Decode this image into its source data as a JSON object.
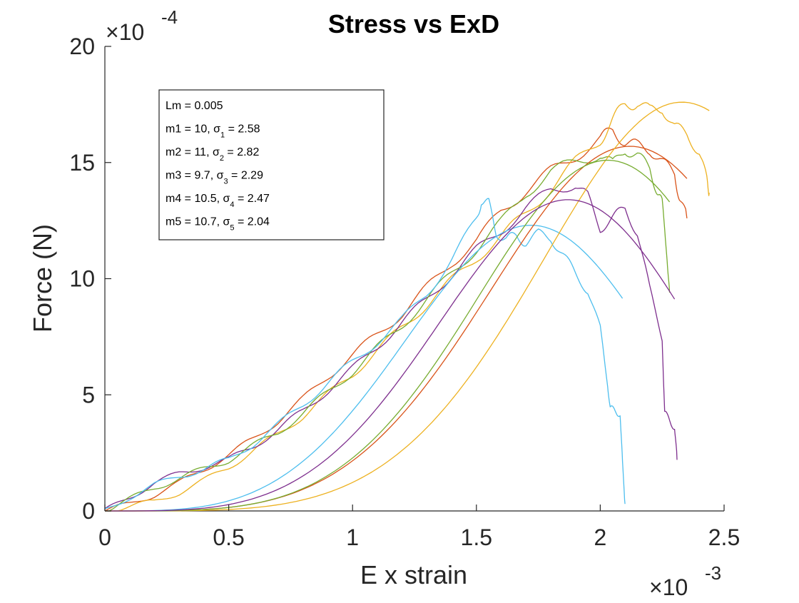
{
  "chart_data": {
    "type": "line",
    "title": "Stress vs ExD",
    "xlabel": "E x strain",
    "ylabel": "Force (N)",
    "x_exponent_label": "×10",
    "x_exponent_power": "-3",
    "y_exponent_label": "×10",
    "y_exponent_power": "-4",
    "x_scale": 0.001,
    "y_scale": 0.0001,
    "xlim": [
      0,
      2.5
    ],
    "ylim": [
      0,
      20
    ],
    "xticks": [
      0,
      0.5,
      1,
      1.5,
      2,
      2.5
    ],
    "xtick_labels": [
      "0",
      "0.5",
      "1",
      "1.5",
      "2",
      "2.5"
    ],
    "yticks": [
      0,
      5,
      10,
      15,
      20
    ],
    "ytick_labels": [
      "0",
      "5",
      "10",
      "15",
      "20"
    ],
    "grid": false,
    "legend_position": "top-left",
    "annotation_lines": [
      {
        "text": "Lm = 0.005",
        "sub": "",
        "tail": ""
      },
      {
        "text": "m1 = 10, σ",
        "sub": "1",
        "tail": " = 2.58"
      },
      {
        "text": "m2 = 11, σ",
        "sub": "2",
        "tail": " = 2.82"
      },
      {
        "text": "m3 = 9.7, σ",
        "sub": "3",
        "tail": " = 2.29"
      },
      {
        "text": "m4 = 10.5, σ",
        "sub": "4",
        "tail": " = 2.47"
      },
      {
        "text": "m5 = 10.7, σ",
        "sub": "5",
        "tail": " = 2.04"
      }
    ],
    "series": [
      {
        "color": "#D95319",
        "fit": false,
        "x": [
          0,
          0.1,
          0.2,
          0.3,
          0.4,
          0.5,
          0.6,
          0.7,
          0.8,
          0.9,
          1.0,
          1.1,
          1.2,
          1.3,
          1.4,
          1.5,
          1.6,
          1.7,
          1.8,
          1.9,
          2.0,
          2.05,
          2.1,
          2.15,
          2.2,
          2.25,
          2.3,
          2.32,
          2.35
        ],
        "y": [
          0,
          0.3,
          0.7,
          1.2,
          1.8,
          2.4,
          3.1,
          3.9,
          4.8,
          5.8,
          6.7,
          7.6,
          8.5,
          9.6,
          10.7,
          11.6,
          12.9,
          13.8,
          14.6,
          15.3,
          16.0,
          16.4,
          15.9,
          15.7,
          15.6,
          15.0,
          14.5,
          13.5,
          12.6
        ]
      },
      {
        "color": "#EDB120",
        "fit": false,
        "x": [
          0,
          0.1,
          0.2,
          0.3,
          0.4,
          0.5,
          0.6,
          0.7,
          0.8,
          0.9,
          1.0,
          1.1,
          1.2,
          1.3,
          1.4,
          1.5,
          1.6,
          1.7,
          1.8,
          1.9,
          2.0,
          2.05,
          2.1,
          2.15,
          2.2,
          2.25,
          2.3,
          2.35,
          2.4,
          2.43,
          2.44
        ],
        "y": [
          0,
          0.2,
          0.4,
          0.8,
          1.3,
          1.9,
          2.6,
          3.3,
          4.1,
          5.0,
          5.9,
          6.9,
          7.9,
          8.9,
          9.9,
          10.9,
          11.8,
          12.8,
          13.9,
          15.0,
          16.0,
          16.8,
          17.5,
          17.6,
          17.2,
          17.4,
          16.5,
          16.2,
          15.5,
          14.2,
          13.7
        ]
      },
      {
        "color": "#7E2F8E",
        "fit": false,
        "x": [
          0,
          0.1,
          0.2,
          0.3,
          0.4,
          0.5,
          0.6,
          0.7,
          0.8,
          0.9,
          1.0,
          1.1,
          1.2,
          1.3,
          1.4,
          1.5,
          1.6,
          1.7,
          1.8,
          1.9,
          1.95,
          2.0,
          2.05,
          2.1,
          2.15,
          2.2,
          2.25,
          2.26,
          2.28,
          2.3,
          2.31
        ],
        "y": [
          0,
          0.6,
          1.2,
          1.6,
          1.9,
          2.2,
          2.8,
          3.5,
          4.3,
          5.2,
          6.1,
          7.1,
          8.1,
          9.1,
          10.2,
          11.2,
          12.1,
          13.0,
          13.8,
          14.1,
          13.5,
          12.2,
          12.6,
          13.0,
          12.0,
          9.5,
          7.5,
          4.2,
          3.9,
          3.6,
          2.2
        ]
      },
      {
        "color": "#77AC30",
        "fit": false,
        "x": [
          0,
          0.1,
          0.2,
          0.3,
          0.4,
          0.5,
          0.6,
          0.7,
          0.8,
          0.9,
          1.0,
          1.1,
          1.2,
          1.3,
          1.4,
          1.5,
          1.6,
          1.7,
          1.8,
          1.9,
          2.0,
          2.05,
          2.1,
          2.15,
          2.2,
          2.23,
          2.25,
          2.27,
          2.28
        ],
        "y": [
          0,
          0.5,
          1.0,
          1.4,
          1.8,
          2.2,
          2.8,
          3.4,
          4.2,
          5.1,
          6.0,
          7.0,
          8.0,
          9.1,
          10.2,
          11.3,
          12.4,
          13.7,
          14.6,
          15.0,
          15.4,
          14.9,
          15.6,
          15.3,
          14.7,
          13.8,
          13.2,
          11.0,
          9.4
        ]
      },
      {
        "color": "#4DBEEE",
        "fit": false,
        "x": [
          0,
          0.1,
          0.2,
          0.3,
          0.4,
          0.5,
          0.6,
          0.7,
          0.8,
          0.9,
          1.0,
          1.1,
          1.2,
          1.3,
          1.4,
          1.5,
          1.52,
          1.55,
          1.58,
          1.62,
          1.66,
          1.7,
          1.75,
          1.8,
          1.85,
          1.9,
          1.95,
          2.0,
          2.03,
          2.04,
          2.06,
          2.08,
          2.09,
          2.1
        ],
        "y": [
          0,
          0.6,
          1.1,
          1.5,
          1.8,
          2.2,
          2.9,
          3.7,
          4.6,
          5.5,
          6.4,
          7.3,
          8.2,
          9.4,
          10.8,
          12.5,
          13.4,
          13.2,
          12.0,
          11.7,
          11.8,
          11.6,
          11.9,
          11.8,
          11.0,
          10.2,
          9.5,
          7.8,
          5.5,
          4.4,
          4.3,
          4.2,
          2.0,
          0.3
        ]
      },
      {
        "color": "#4DBEEE",
        "fit": true,
        "scale": 12.3,
        "k": 3.5,
        "lambda": 1.72,
        "x_max": 2.09
      },
      {
        "color": "#D95319",
        "fit": true,
        "scale": 15.7,
        "k": 3.9,
        "lambda": 2.12,
        "x_max": 2.35
      },
      {
        "color": "#EDB120",
        "fit": true,
        "scale": 17.6,
        "k": 4.3,
        "lambda": 2.33,
        "x_max": 2.44
      },
      {
        "color": "#77AC30",
        "fit": true,
        "scale": 15.1,
        "k": 4.0,
        "lambda": 2.03,
        "x_max": 2.28
      },
      {
        "color": "#7E2F8E",
        "fit": true,
        "scale": 13.4,
        "k": 3.7,
        "lambda": 1.87,
        "x_max": 2.3
      }
    ]
  }
}
